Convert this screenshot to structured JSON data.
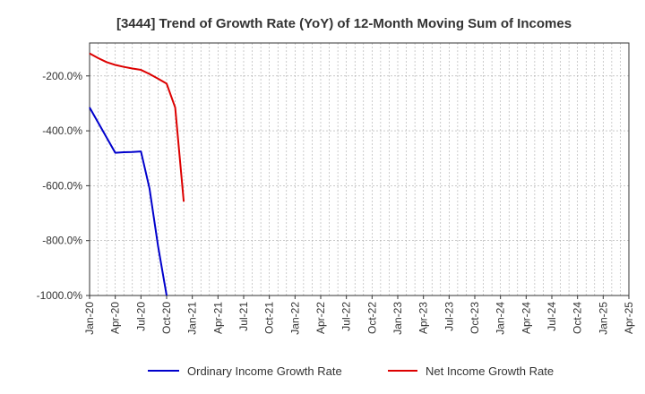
{
  "chart_data": {
    "type": "line",
    "title": "[3444]  Trend of Growth Rate (YoY) of 12-Month Moving Sum of Incomes",
    "xlabel": "",
    "ylabel": "",
    "x_ticks": [
      "Jan-20",
      "Apr-20",
      "Jul-20",
      "Oct-20",
      "Jan-21",
      "Apr-21",
      "Jul-21",
      "Oct-21",
      "Jan-22",
      "Apr-22",
      "Jul-22",
      "Oct-22",
      "Jan-23",
      "Apr-23",
      "Jul-23",
      "Oct-23",
      "Jan-24",
      "Apr-24",
      "Jul-24",
      "Oct-24",
      "Jan-25",
      "Apr-25"
    ],
    "y_ticks": [
      -200.0,
      -400.0,
      -600.0,
      -800.0,
      -1000.0
    ],
    "y_tick_labels": [
      "-200.0%",
      "-400.0%",
      "-600.0%",
      "-800.0%",
      "-1000.0%"
    ],
    "ylim": [
      -1000,
      -80
    ],
    "grid": true,
    "legend_position": "bottom",
    "series": [
      {
        "name": "Ordinary Income Growth Rate",
        "color": "#0000cc",
        "points": [
          {
            "x": "Jan-20",
            "y": -315
          },
          {
            "x": "Feb-20",
            "y": -370
          },
          {
            "x": "Mar-20",
            "y": -425
          },
          {
            "x": "Apr-20",
            "y": -480
          },
          {
            "x": "May-20",
            "y": -478
          },
          {
            "x": "Jun-20",
            "y": -477
          },
          {
            "x": "Jul-20",
            "y": -475
          },
          {
            "x": "Aug-20",
            "y": -610
          },
          {
            "x": "Sep-20",
            "y": -820
          },
          {
            "x": "Oct-20",
            "y": -1000
          }
        ]
      },
      {
        "name": "Net Income Growth Rate",
        "color": "#dd0000",
        "points": [
          {
            "x": "Jan-20",
            "y": -118
          },
          {
            "x": "Feb-20",
            "y": -135
          },
          {
            "x": "Mar-20",
            "y": -150
          },
          {
            "x": "Apr-20",
            "y": -160
          },
          {
            "x": "May-20",
            "y": -167
          },
          {
            "x": "Jun-20",
            "y": -173
          },
          {
            "x": "Jul-20",
            "y": -178
          },
          {
            "x": "Aug-20",
            "y": -193
          },
          {
            "x": "Sep-20",
            "y": -210
          },
          {
            "x": "Oct-20",
            "y": -228
          },
          {
            "x": "Nov-20",
            "y": -315
          },
          {
            "x": "Dec-20",
            "y": -658
          }
        ]
      }
    ]
  }
}
